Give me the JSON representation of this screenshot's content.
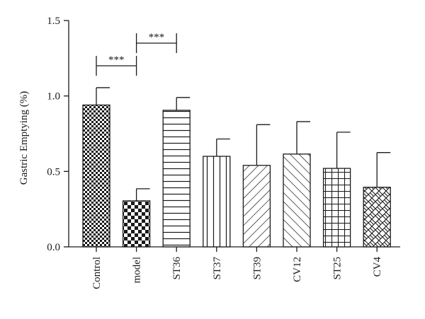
{
  "chart_data": {
    "type": "bar",
    "ylabel": "Gastric Emptying (%)",
    "ylim": [
      0,
      1.5
    ],
    "yticks": [
      "0.0",
      "0.5",
      "1.0",
      "1.5"
    ],
    "categories": [
      "Control",
      "model",
      "ST36",
      "ST37",
      "ST39",
      "CV12",
      "ST25",
      "CV4"
    ],
    "values": [
      0.94,
      0.305,
      0.905,
      0.6,
      0.54,
      0.615,
      0.52,
      0.395
    ],
    "errors": [
      0.115,
      0.08,
      0.085,
      0.115,
      0.27,
      0.215,
      0.24,
      0.23
    ],
    "patterns": [
      "checker-fine",
      "checker-coarse",
      "horizontal-lines",
      "vertical-lines",
      "diagonal-lines",
      "diagonal-lines",
      "grid",
      "lattice"
    ],
    "significance": [
      {
        "from": 0,
        "to": 1,
        "label": "***",
        "y": 1.2
      },
      {
        "from": 1,
        "to": 2,
        "label": "***",
        "y": 1.35
      }
    ],
    "grid": false,
    "legend": "none"
  }
}
